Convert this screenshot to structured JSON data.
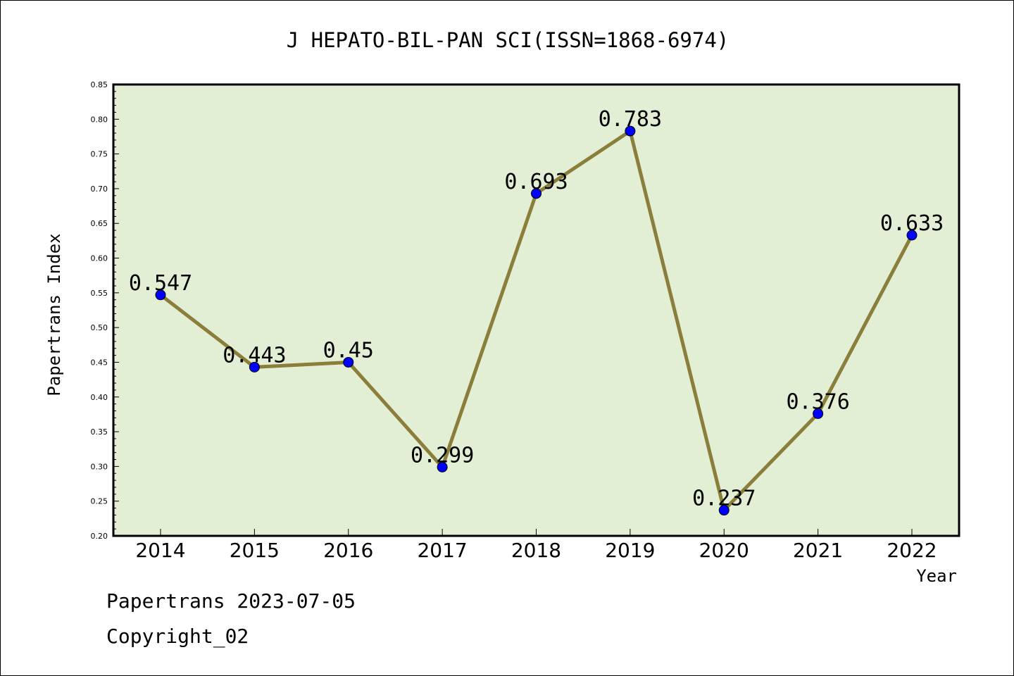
{
  "chart_data": {
    "type": "line",
    "title": "J HEPATO-BIL-PAN SCI(ISSN=1868-6974)",
    "xlabel": "Year",
    "ylabel": "Papertrans Index",
    "x": [
      "2014",
      "2015",
      "2016",
      "2017",
      "2018",
      "2019",
      "2020",
      "2021",
      "2022"
    ],
    "series": [
      {
        "values": [
          0.547,
          0.443,
          0.45,
          0.299,
          0.693,
          0.783,
          0.237,
          0.376,
          0.633
        ],
        "labels": [
          "0.547",
          "0.443",
          "0.45",
          "0.299",
          "0.693",
          "0.783",
          "0.237",
          "0.376",
          "0.633"
        ]
      }
    ],
    "ylim": [
      0.2,
      0.85
    ],
    "yticks": [
      "0.20",
      "0.25",
      "0.30",
      "0.35",
      "0.40",
      "0.45",
      "0.50",
      "0.55",
      "0.60",
      "0.65",
      "0.70",
      "0.75",
      "0.80",
      "0.85"
    ],
    "grid": false,
    "legend": "none",
    "colors": {
      "plot_background": "#e2efd5",
      "line": "#8b7d3a",
      "marker": "#0000ff"
    }
  },
  "footer": {
    "date_line": "Papertrans 2023-07-05",
    "copyright": "Copyright_02"
  }
}
